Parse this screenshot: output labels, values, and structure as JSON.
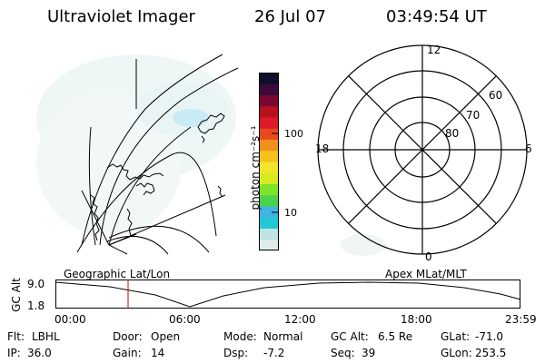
{
  "header": {
    "instrument": "Ultraviolet Imager",
    "date": "26 Jul 07",
    "time": "03:49:54 UT"
  },
  "colorbar": {
    "unit_label": "photon cm⁻²s⁻¹",
    "ticks": [
      "100",
      "10"
    ],
    "colors": [
      "#e0ecec",
      "#bfe3e3",
      "#22c8d8",
      "#3fb4e0",
      "#4bd24b",
      "#7fe32a",
      "#d6ea1e",
      "#f0e52a",
      "#f4c21a",
      "#ef8f1e",
      "#e84a1e",
      "#dd1a2a",
      "#b8101e",
      "#7a0830",
      "#3a0a3a",
      "#0f0f2a"
    ]
  },
  "left_map": {
    "label": "Geographic Lat/Lon"
  },
  "polar_plot": {
    "label": "Apex MLat/MLT",
    "mlt_labels": {
      "top": "12",
      "left": "18",
      "right": "6",
      "bottom": "0"
    },
    "lat_labels": [
      "60",
      "70",
      "80"
    ]
  },
  "altitude_plot": {
    "ylabel": "GC Alt",
    "y_ticks": [
      "9.0",
      "1.8"
    ],
    "x_ticks": [
      "00:00",
      "06:00",
      "12:00",
      "18:00",
      "23:59"
    ],
    "current_time_marker": "03:49:54"
  },
  "info": {
    "flt": {
      "label": "Flt:",
      "value": "LBHL"
    },
    "ip": {
      "label": "IP:",
      "value": "36.0"
    },
    "door": {
      "label": "Door:",
      "value": "Open"
    },
    "gain": {
      "label": "Gain:",
      "value": "14"
    },
    "mode": {
      "label": "Mode:",
      "value": "Normal"
    },
    "dsp": {
      "label": "Dsp:",
      "value": "-7.2"
    },
    "gcalt": {
      "label": "GC Alt:",
      "value": "6.5 Re"
    },
    "seq": {
      "label": "Seq:",
      "value": "39"
    },
    "glat": {
      "label": "GLat:",
      "value": "-71.0"
    },
    "glon": {
      "label": "GLon:",
      "value": "253.5"
    }
  }
}
